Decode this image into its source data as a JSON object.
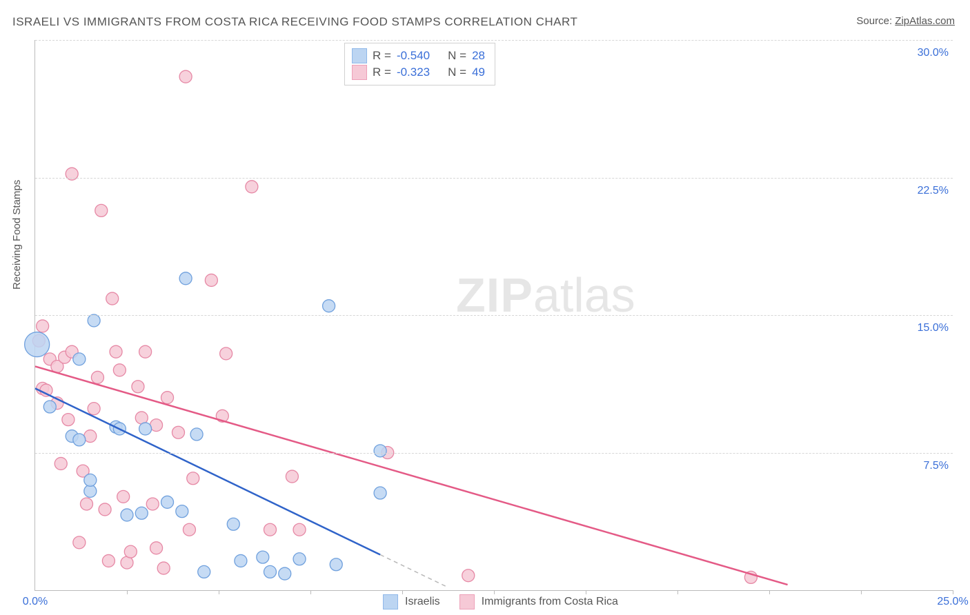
{
  "title": "ISRAELI VS IMMIGRANTS FROM COSTA RICA RECEIVING FOOD STAMPS CORRELATION CHART",
  "source_label": "Source:",
  "source_site": "ZipAtlas.com",
  "y_axis_label": "Receiving Food Stamps",
  "watermark": {
    "zip": "ZIP",
    "rest": "atlas"
  },
  "chart": {
    "type": "scatter",
    "xlim": [
      0,
      25
    ],
    "ylim": [
      0,
      30
    ],
    "x_ticks": [
      0,
      2.5,
      5,
      7.5,
      10,
      12.5,
      15,
      17.5,
      20,
      22.5,
      25
    ],
    "x_tick_labels": {
      "0": "0.0%",
      "25": "25.0%"
    },
    "y_ticks": [
      7.5,
      15,
      22.5,
      30
    ],
    "y_tick_labels": {
      "7.5": "7.5%",
      "15": "15.0%",
      "22.5": "22.5%",
      "30": "30.0%"
    },
    "grid_color": "#d6d6d6",
    "axis_color": "#bbbbbb",
    "background_color": "#ffffff",
    "tick_label_color": "#3a6fd8",
    "title_fontsize": 17,
    "label_fontsize": 15
  },
  "stat_legend": {
    "rows": [
      {
        "swatch_fill": "#bcd5f2",
        "swatch_border": "#8fb8e9",
        "r": "-0.540",
        "n": "28"
      },
      {
        "swatch_fill": "#f6c9d6",
        "swatch_border": "#eda0b8",
        "r": "-0.323",
        "n": "49"
      }
    ],
    "r_prefix": "R =",
    "n_prefix": "N ="
  },
  "series": [
    {
      "name": "Israelis",
      "legend_label": "Israelis",
      "color_fill": "#bcd5f2",
      "color_stroke": "#6fa0dd",
      "marker_radius": 9,
      "marker_opacity": 0.85,
      "trend": {
        "x1": 0,
        "y1": 11.0,
        "x2": 11.2,
        "y2": 0.2,
        "dash_from_x": 9.4,
        "color": "#2f63c9",
        "width": 2.5
      },
      "points": [
        {
          "x": 0.05,
          "y": 13.4,
          "r": 18
        },
        {
          "x": 0.4,
          "y": 10.0
        },
        {
          "x": 1.2,
          "y": 12.6
        },
        {
          "x": 1.0,
          "y": 8.4
        },
        {
          "x": 1.2,
          "y": 8.2
        },
        {
          "x": 1.6,
          "y": 14.7
        },
        {
          "x": 1.5,
          "y": 5.4
        },
        {
          "x": 1.5,
          "y": 6.0
        },
        {
          "x": 2.2,
          "y": 8.9
        },
        {
          "x": 2.3,
          "y": 8.8
        },
        {
          "x": 2.5,
          "y": 4.1
        },
        {
          "x": 2.9,
          "y": 4.2
        },
        {
          "x": 3.0,
          "y": 8.8
        },
        {
          "x": 3.6,
          "y": 4.8
        },
        {
          "x": 4.0,
          "y": 4.3
        },
        {
          "x": 4.1,
          "y": 17.0
        },
        {
          "x": 4.4,
          "y": 8.5
        },
        {
          "x": 4.6,
          "y": 1.0
        },
        {
          "x": 5.4,
          "y": 3.6
        },
        {
          "x": 5.6,
          "y": 1.6
        },
        {
          "x": 6.2,
          "y": 1.8
        },
        {
          "x": 6.4,
          "y": 1.0
        },
        {
          "x": 6.8,
          "y": 0.9
        },
        {
          "x": 7.2,
          "y": 1.7
        },
        {
          "x": 8.0,
          "y": 15.5
        },
        {
          "x": 8.2,
          "y": 1.4
        },
        {
          "x": 9.4,
          "y": 5.3
        },
        {
          "x": 9.4,
          "y": 7.6
        }
      ]
    },
    {
      "name": "Immigrants from Costa Rica",
      "legend_label": "Immigrants from Costa Rica",
      "color_fill": "#f6c9d6",
      "color_stroke": "#e688a5",
      "marker_radius": 9,
      "marker_opacity": 0.85,
      "trend": {
        "x1": 0,
        "y1": 12.2,
        "x2": 20.5,
        "y2": 0.3,
        "color": "#e45a86",
        "width": 2.5
      },
      "points": [
        {
          "x": 0.1,
          "y": 13.6
        },
        {
          "x": 0.2,
          "y": 11.0
        },
        {
          "x": 0.2,
          "y": 14.4
        },
        {
          "x": 0.3,
          "y": 10.9
        },
        {
          "x": 0.4,
          "y": 12.6
        },
        {
          "x": 0.6,
          "y": 12.2
        },
        {
          "x": 0.6,
          "y": 10.2
        },
        {
          "x": 0.7,
          "y": 6.9
        },
        {
          "x": 0.8,
          "y": 12.7
        },
        {
          "x": 0.9,
          "y": 9.3
        },
        {
          "x": 1.0,
          "y": 22.7
        },
        {
          "x": 1.0,
          "y": 13.0
        },
        {
          "x": 1.2,
          "y": 2.6
        },
        {
          "x": 1.3,
          "y": 6.5
        },
        {
          "x": 1.4,
          "y": 4.7
        },
        {
          "x": 1.5,
          "y": 8.4
        },
        {
          "x": 1.6,
          "y": 9.9
        },
        {
          "x": 1.7,
          "y": 11.6
        },
        {
          "x": 1.8,
          "y": 20.7
        },
        {
          "x": 1.9,
          "y": 4.4
        },
        {
          "x": 2.0,
          "y": 1.6
        },
        {
          "x": 2.1,
          "y": 15.9
        },
        {
          "x": 2.2,
          "y": 13.0
        },
        {
          "x": 2.3,
          "y": 12.0
        },
        {
          "x": 2.4,
          "y": 5.1
        },
        {
          "x": 2.5,
          "y": 1.5
        },
        {
          "x": 2.6,
          "y": 2.1
        },
        {
          "x": 2.8,
          "y": 11.1
        },
        {
          "x": 2.9,
          "y": 9.4
        },
        {
          "x": 3.0,
          "y": 13.0
        },
        {
          "x": 3.2,
          "y": 4.7
        },
        {
          "x": 3.3,
          "y": 9.0
        },
        {
          "x": 3.3,
          "y": 2.3
        },
        {
          "x": 3.5,
          "y": 1.2
        },
        {
          "x": 3.6,
          "y": 10.5
        },
        {
          "x": 3.9,
          "y": 8.6
        },
        {
          "x": 4.1,
          "y": 28.0
        },
        {
          "x": 4.2,
          "y": 3.3
        },
        {
          "x": 4.3,
          "y": 6.1
        },
        {
          "x": 4.8,
          "y": 16.9
        },
        {
          "x": 5.1,
          "y": 9.5
        },
        {
          "x": 5.2,
          "y": 12.9
        },
        {
          "x": 5.9,
          "y": 22.0
        },
        {
          "x": 6.4,
          "y": 3.3
        },
        {
          "x": 7.0,
          "y": 6.2
        },
        {
          "x": 7.2,
          "y": 3.3
        },
        {
          "x": 9.6,
          "y": 7.5
        },
        {
          "x": 11.8,
          "y": 0.8
        },
        {
          "x": 19.5,
          "y": 0.7
        }
      ]
    }
  ],
  "bottom_legend": [
    {
      "swatch_fill": "#bcd5f2",
      "swatch_border": "#8fb8e9",
      "label": "Israelis"
    },
    {
      "swatch_fill": "#f6c9d6",
      "swatch_border": "#eda0b8",
      "label": "Immigrants from Costa Rica"
    }
  ]
}
